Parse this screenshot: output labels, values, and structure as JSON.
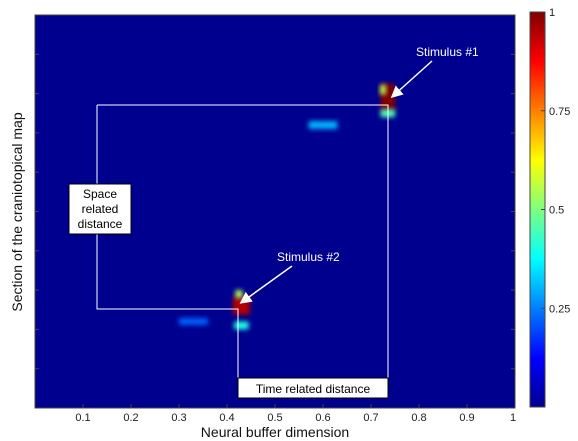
{
  "chart_data": {
    "type": "heatmap",
    "title": "",
    "xlabel": "Neural buffer dimension",
    "ylabel": "Section of the craniotopical map",
    "xlim": [
      0,
      1
    ],
    "ylim": [
      0,
      1
    ],
    "x_ticks": [
      "0.1",
      "0.2",
      "0.3",
      "0.4",
      "0.5",
      "0.6",
      "0.7",
      "0.8",
      "0.9",
      "1"
    ],
    "colorbar": {
      "range": [
        0,
        1
      ],
      "ticks": [
        "1",
        "0.75",
        "0.5",
        "0.25"
      ],
      "colormap": "jet"
    },
    "background_value": 0,
    "blobs": [
      {
        "x": 0.735,
        "y": 0.79,
        "w": 0.03,
        "h": 0.07,
        "value": 1.0
      },
      {
        "x": 0.725,
        "y": 0.81,
        "w": 0.012,
        "h": 0.025,
        "value": 0.55
      },
      {
        "x": 0.735,
        "y": 0.75,
        "w": 0.03,
        "h": 0.02,
        "value": 0.45
      },
      {
        "x": 0.6,
        "y": 0.72,
        "w": 0.06,
        "h": 0.02,
        "value": 0.3
      },
      {
        "x": 0.43,
        "y": 0.26,
        "w": 0.035,
        "h": 0.045,
        "value": 0.95
      },
      {
        "x": 0.425,
        "y": 0.29,
        "w": 0.015,
        "h": 0.02,
        "value": 0.55
      },
      {
        "x": 0.43,
        "y": 0.21,
        "w": 0.03,
        "h": 0.02,
        "value": 0.4
      },
      {
        "x": 0.33,
        "y": 0.22,
        "w": 0.06,
        "h": 0.018,
        "value": 0.22
      }
    ],
    "annotations": [
      {
        "text": "Stimulus #1"
      },
      {
        "text": "Stimulus #2"
      },
      {
        "lines": [
          "Space",
          "related",
          "distance"
        ]
      },
      {
        "text": "Time related distance"
      }
    ]
  }
}
